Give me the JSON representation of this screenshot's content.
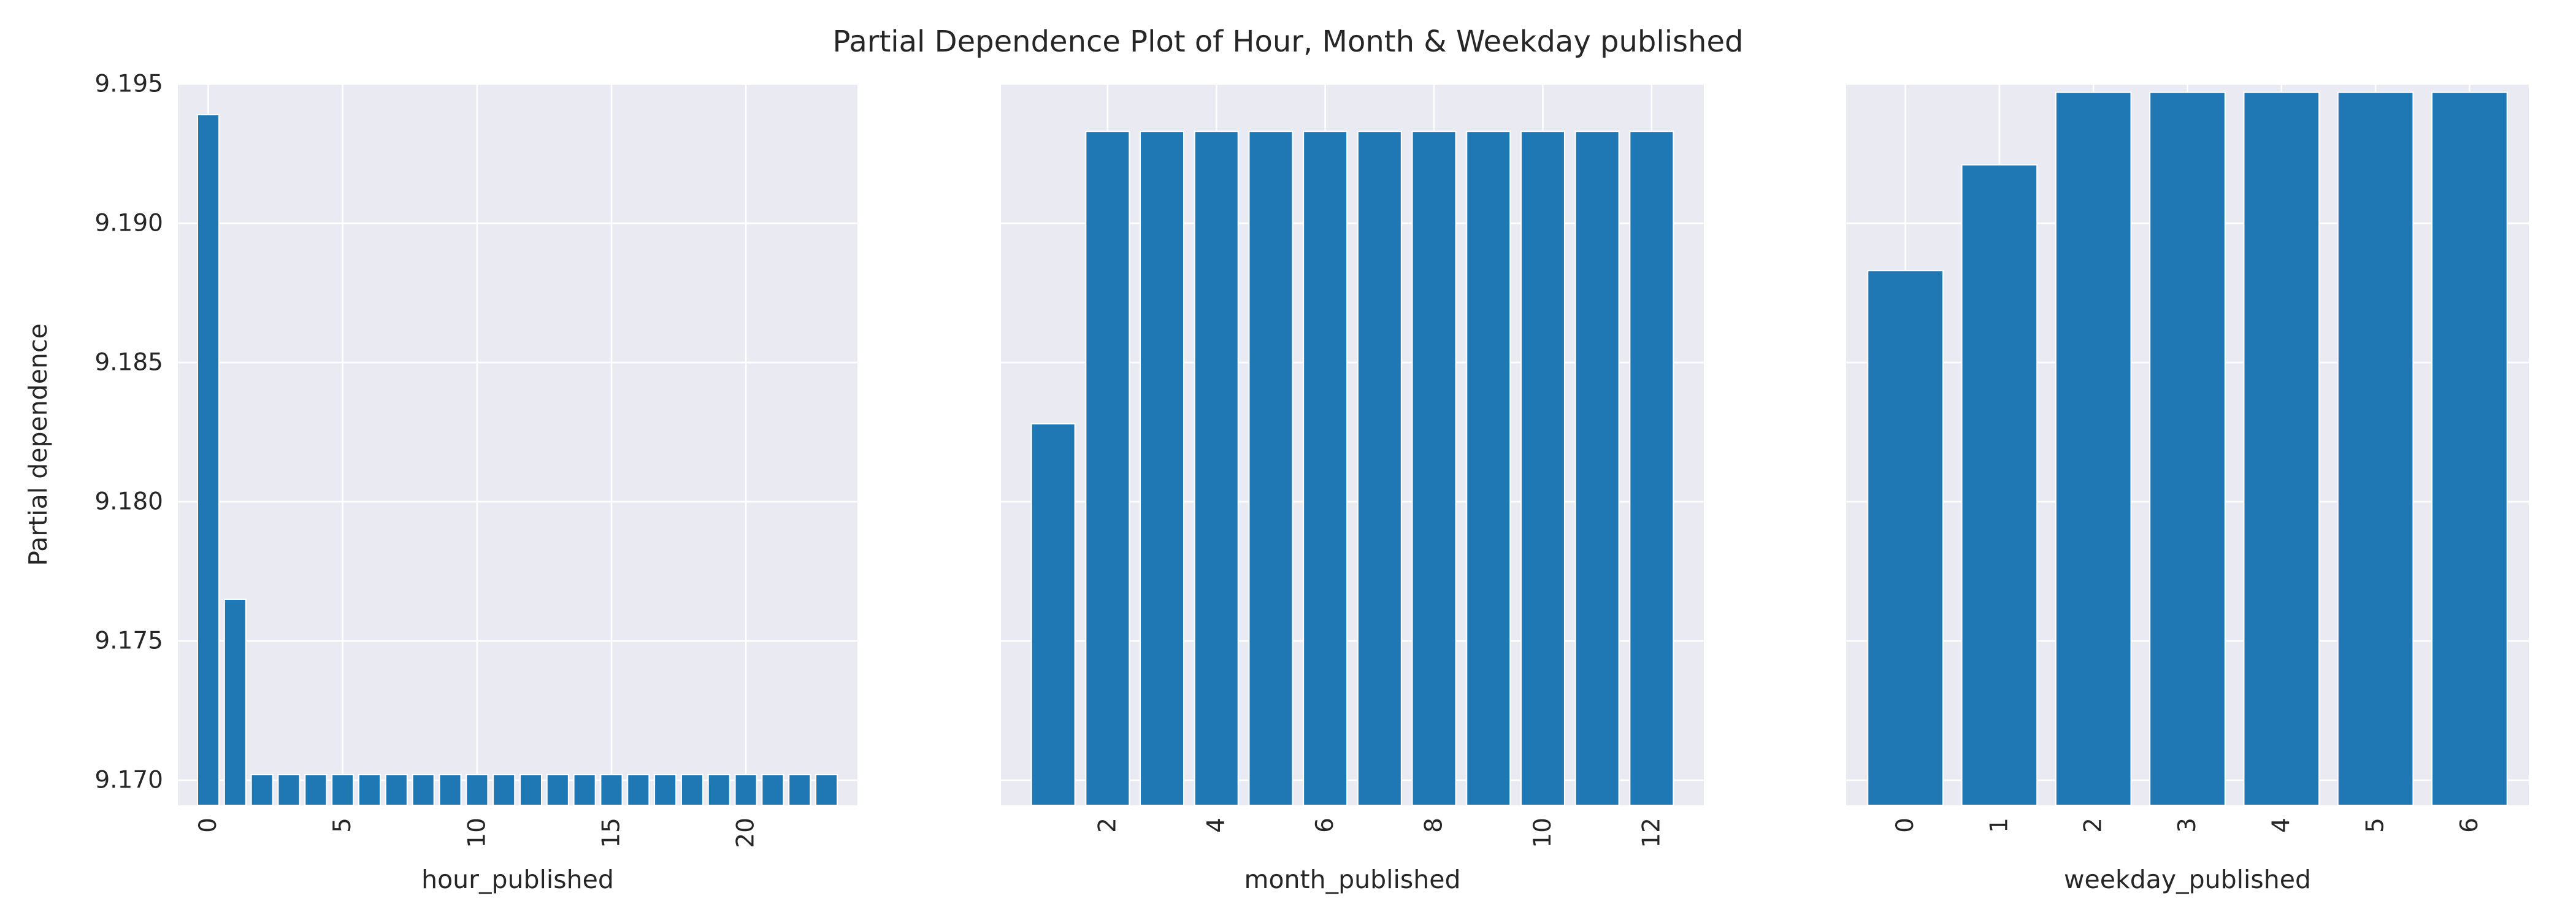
{
  "chart_data": {
    "title": "Partial Dependence Plot of Hour, Month & Weekday published",
    "style": {
      "panel_bg": "#eaeaf2",
      "grid_color": "#ffffff",
      "bar_color": "#1f77b4",
      "bar_edge": "#ffffff",
      "text_color": "#262626"
    },
    "shared_y": {
      "label": "Partial dependence",
      "ylim": [
        9.1691,
        9.195
      ],
      "ticks": [
        9.17,
        9.175,
        9.18,
        9.185,
        9.19,
        9.195
      ],
      "tick_labels": [
        "9.170",
        "9.175",
        "9.180",
        "9.185",
        "9.190",
        "9.195"
      ]
    },
    "charts": [
      {
        "type": "bar",
        "xlabel": "hour_published",
        "x": [
          0,
          1,
          2,
          3,
          4,
          5,
          6,
          7,
          8,
          9,
          10,
          11,
          12,
          13,
          14,
          15,
          16,
          17,
          18,
          19,
          20,
          21,
          22,
          23
        ],
        "values": [
          9.1939,
          9.1765,
          9.1702,
          9.1702,
          9.1702,
          9.1702,
          9.1702,
          9.1702,
          9.1702,
          9.1702,
          9.1702,
          9.1702,
          9.1702,
          9.1702,
          9.1702,
          9.1702,
          9.1702,
          9.1702,
          9.1702,
          9.1702,
          9.1702,
          9.1702,
          9.1702,
          9.1702
        ],
        "xlim": [
          -1.13,
          24.15
        ],
        "xticks": [
          0,
          5,
          10,
          15,
          20
        ],
        "xtick_labels": [
          "0",
          "5",
          "10",
          "15",
          "20"
        ]
      },
      {
        "type": "bar",
        "xlabel": "month_published",
        "x": [
          1,
          2,
          3,
          4,
          5,
          6,
          7,
          8,
          9,
          10,
          11,
          12
        ],
        "values": [
          9.1828,
          9.1933,
          9.1933,
          9.1933,
          9.1933,
          9.1933,
          9.1933,
          9.1933,
          9.1933,
          9.1933,
          9.1933,
          9.1933
        ],
        "xlim": [
          0.04,
          12.96
        ],
        "xticks": [
          2,
          4,
          6,
          8,
          10,
          12
        ],
        "xtick_labels": [
          "2",
          "4",
          "6",
          "8",
          "10",
          "12"
        ]
      },
      {
        "type": "bar",
        "xlabel": "weekday_published",
        "x": [
          0,
          1,
          2,
          3,
          4,
          5,
          6
        ],
        "values": [
          9.1883,
          9.1921,
          9.1947,
          9.1947,
          9.1947,
          9.1947,
          9.1947
        ],
        "xlim": [
          -0.63,
          6.63
        ],
        "xticks": [
          0,
          1,
          2,
          3,
          4,
          5,
          6
        ],
        "xtick_labels": [
          "0",
          "1",
          "2",
          "3",
          "4",
          "5",
          "6"
        ]
      }
    ]
  }
}
